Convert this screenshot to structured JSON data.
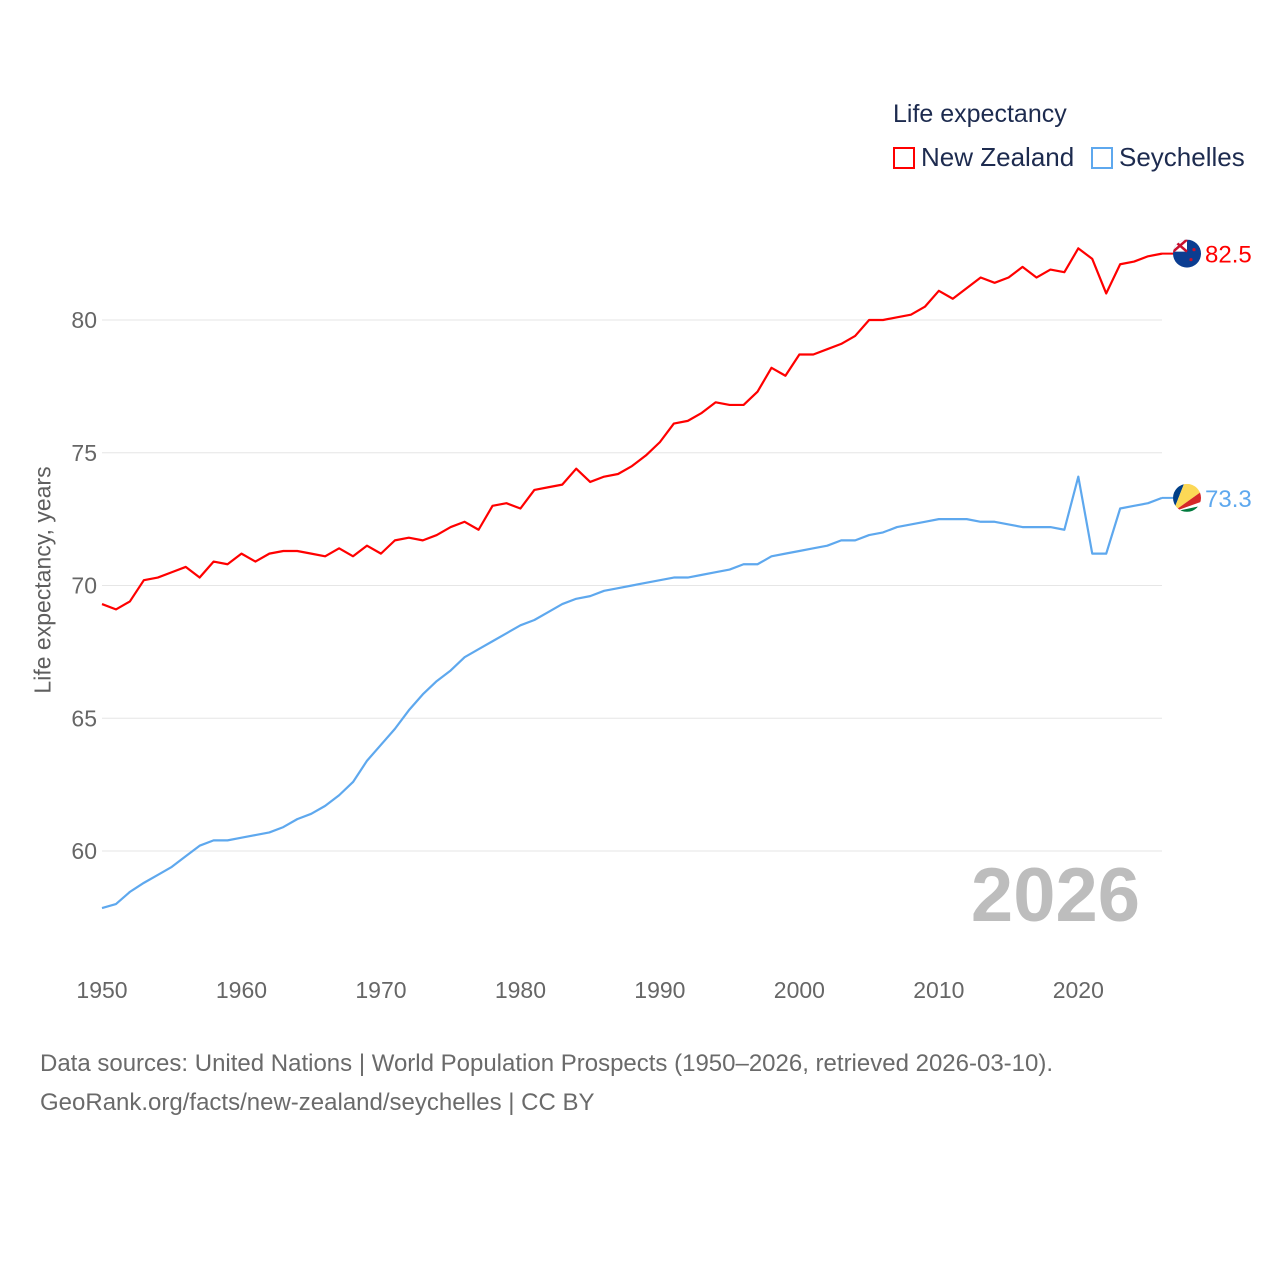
{
  "legend": {
    "title": "Life expectancy",
    "items": [
      {
        "label": "New Zealand",
        "color": "#ff0000"
      },
      {
        "label": "Seychelles",
        "color": "#5ea8ee"
      }
    ]
  },
  "current_year": "2026",
  "footer": {
    "line1": "Data sources: United Nations | World Population Prospects (1950–2026, retrieved 2026-03-10).",
    "line2": "GeoRank.org/facts/new-zealand/seychelles | CC BY"
  },
  "chart_data": {
    "type": "line",
    "title": "Life expectancy",
    "xlabel": "",
    "ylabel": "Life expectancy, years",
    "xlim": [
      1950,
      2026
    ],
    "ylim": [
      56,
      84
    ],
    "yticks": [
      60,
      65,
      70,
      75,
      80
    ],
    "xticks": [
      1950,
      1960,
      1970,
      1980,
      1990,
      2000,
      2010,
      2020
    ],
    "grid": true,
    "legend_position": "top-right",
    "x_start": 1950,
    "series": [
      {
        "name": "New Zealand",
        "color": "#ff0000",
        "end_label": "82.5",
        "flag": "new-zealand",
        "values": [
          69.3,
          69.1,
          69.4,
          70.2,
          70.3,
          70.5,
          70.7,
          70.3,
          70.9,
          70.8,
          71.2,
          70.9,
          71.2,
          71.3,
          71.3,
          71.2,
          71.1,
          71.4,
          71.1,
          71.5,
          71.2,
          71.7,
          71.8,
          71.7,
          71.9,
          72.2,
          72.4,
          72.1,
          73.0,
          73.1,
          72.9,
          73.6,
          73.7,
          73.8,
          74.4,
          73.9,
          74.1,
          74.2,
          74.5,
          74.9,
          75.4,
          76.1,
          76.2,
          76.5,
          76.9,
          76.8,
          76.8,
          77.3,
          78.2,
          77.9,
          78.7,
          78.7,
          78.9,
          79.1,
          79.4,
          80.0,
          80.0,
          80.1,
          80.2,
          80.5,
          81.1,
          80.8,
          81.2,
          81.6,
          81.4,
          81.6,
          82.0,
          81.6,
          81.9,
          81.8,
          82.7,
          82.3,
          81.0,
          82.1,
          82.2,
          82.4,
          82.5
        ]
      },
      {
        "name": "Seychelles",
        "color": "#5ea8ee",
        "end_label": "73.3",
        "flag": "seychelles",
        "values": [
          57.85,
          58.0,
          58.46,
          58.8,
          59.1,
          59.4,
          59.8,
          60.2,
          60.4,
          60.4,
          60.5,
          60.6,
          60.7,
          60.9,
          61.2,
          61.4,
          61.7,
          62.1,
          62.6,
          63.4,
          64.0,
          64.6,
          65.3,
          65.9,
          66.4,
          66.8,
          67.3,
          67.6,
          67.9,
          68.2,
          68.5,
          68.7,
          69.0,
          69.3,
          69.5,
          69.6,
          69.8,
          69.9,
          70.0,
          70.1,
          70.2,
          70.3,
          70.3,
          70.4,
          70.5,
          70.6,
          70.8,
          70.8,
          71.1,
          71.2,
          71.3,
          71.4,
          71.5,
          71.7,
          71.7,
          71.9,
          72.0,
          72.2,
          72.3,
          72.4,
          72.5,
          72.5,
          72.5,
          72.4,
          72.4,
          72.3,
          72.2,
          72.2,
          72.2,
          72.1,
          74.1,
          71.2,
          71.2,
          72.9,
          73.0,
          73.1,
          73.3
        ]
      }
    ]
  }
}
